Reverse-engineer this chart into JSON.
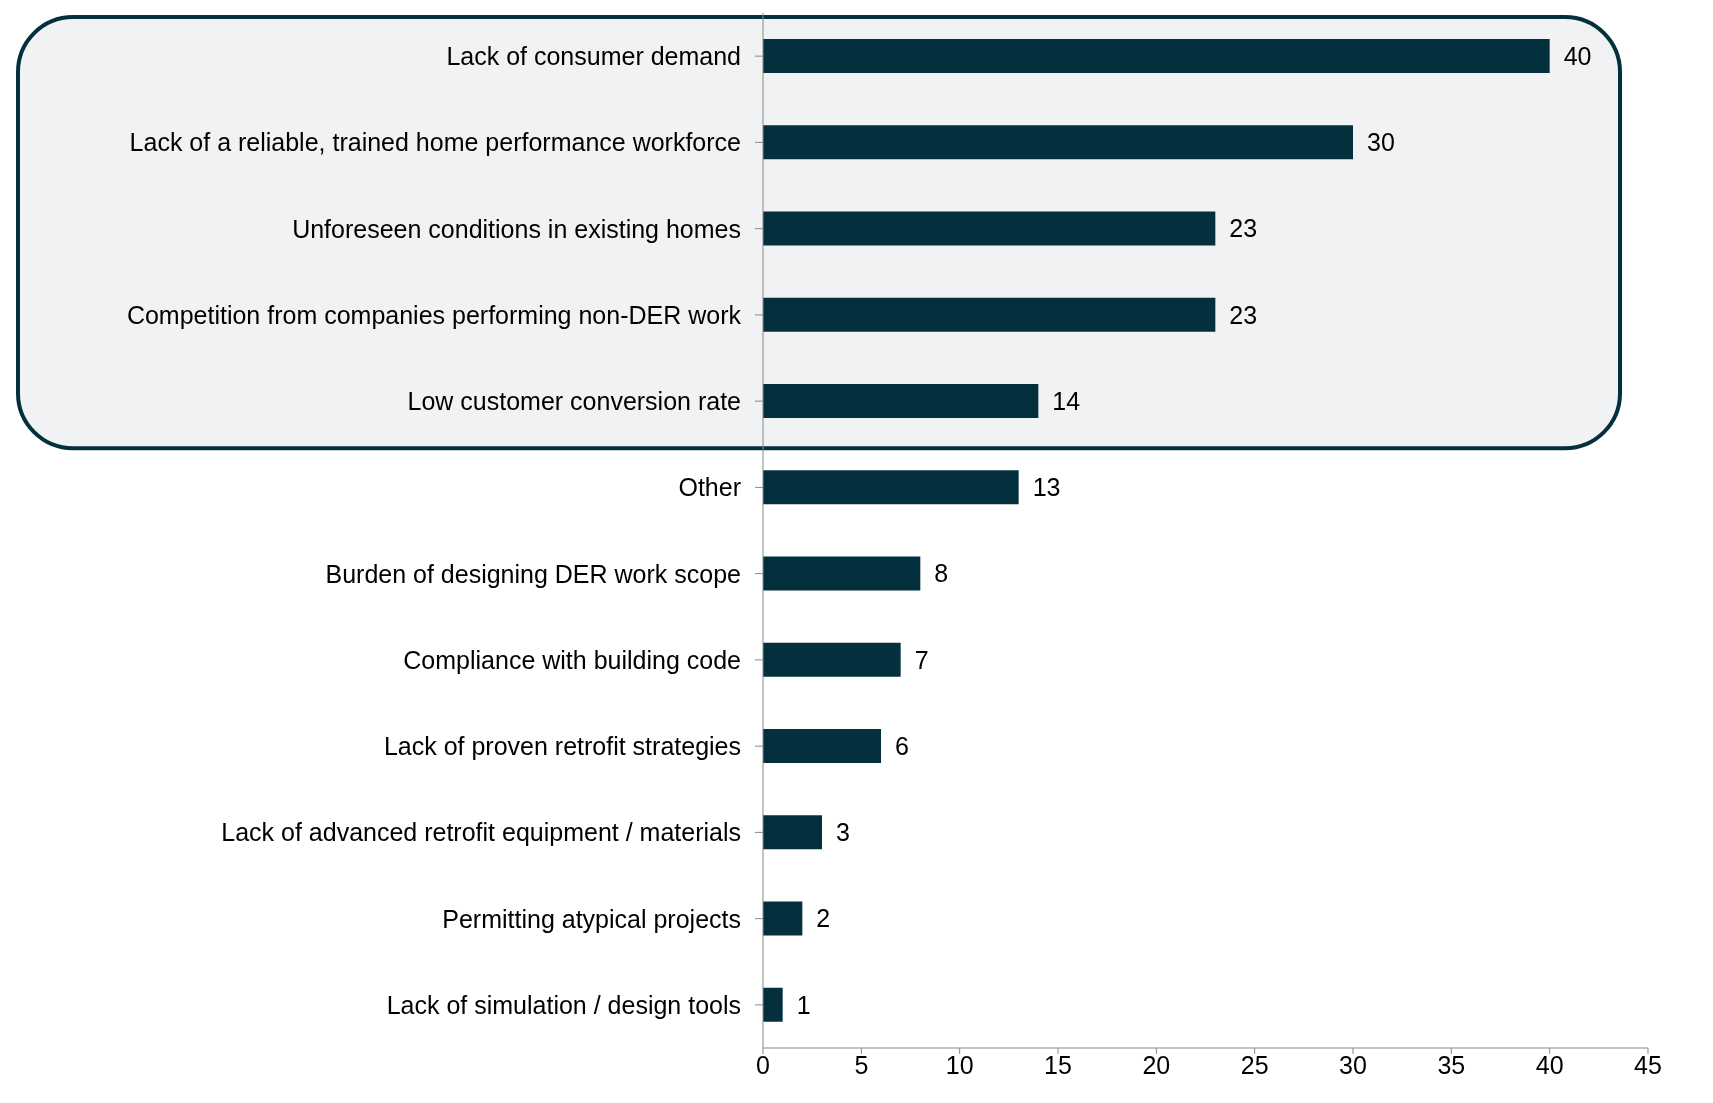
{
  "chart_data": {
    "type": "bar",
    "orientation": "horizontal",
    "categories": [
      "Lack of consumer demand",
      "Lack of a reliable, trained home performance workforce",
      "Unforeseen conditions in existing homes",
      "Competition from companies performing non-DER work",
      "Low customer conversion rate",
      "Other",
      "Burden of designing DER work scope",
      "Compliance with building code",
      "Lack of proven retrofit strategies",
      "Lack of advanced retrofit equipment / materials",
      "Permitting atypical projects",
      "Lack of simulation / design tools"
    ],
    "values": [
      40,
      30,
      23,
      23,
      14,
      13,
      8,
      7,
      6,
      3,
      2,
      1
    ],
    "color": "#03303c",
    "xlim": [
      0,
      45
    ],
    "xticks": [
      0,
      5,
      10,
      15,
      20,
      25,
      30,
      35,
      40,
      45
    ],
    "grid": false,
    "legend": false,
    "data_labels": true,
    "bands": [
      {
        "axis": "y",
        "from": "Lack of consumer demand",
        "to": "Low customer conversion rate",
        "color": "#f1f2f4"
      }
    ]
  }
}
